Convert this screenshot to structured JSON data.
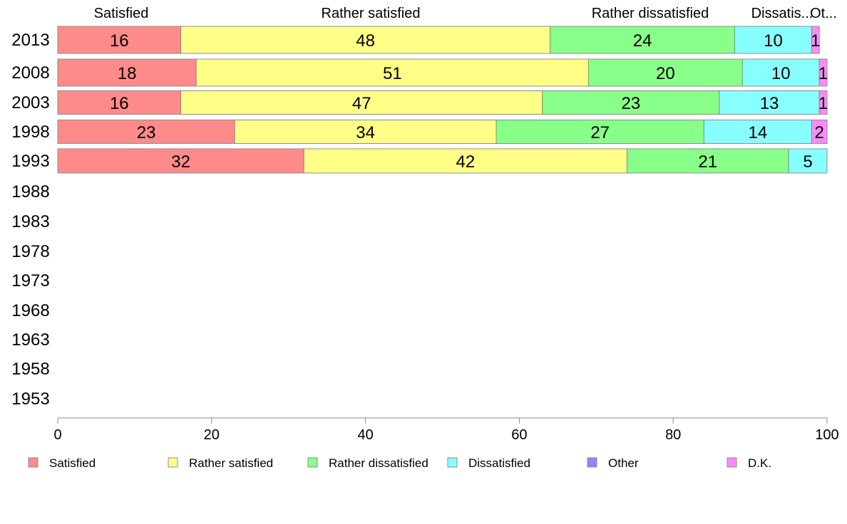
{
  "chart_data": {
    "type": "bar",
    "orientation": "horizontal",
    "stacked": true,
    "title": "",
    "xlabel": "",
    "ylabel": "",
    "xlim": [
      0,
      100
    ],
    "x_ticks": [
      "0",
      "20",
      "40",
      "60",
      "80",
      "100"
    ],
    "categories": [
      "2013",
      "2008",
      "2003",
      "1998",
      "1993",
      "1988",
      "1983",
      "1978",
      "1973",
      "1968",
      "1963",
      "1958",
      "1953"
    ],
    "top_labels": [
      "Satisfied",
      "Rather satisfied",
      "Rather dissatisfied",
      "Dissatis...",
      "Ot..."
    ],
    "series": [
      {
        "name": "Satisfied",
        "color": "#ff8a8a",
        "values": [
          16,
          18,
          16,
          23,
          32,
          null,
          null,
          null,
          null,
          null,
          null,
          null,
          null
        ]
      },
      {
        "name": "Rather satisfied",
        "color": "#ffff88",
        "values": [
          48,
          51,
          47,
          34,
          42,
          null,
          null,
          null,
          null,
          null,
          null,
          null,
          null
        ]
      },
      {
        "name": "Rather dissatisfied",
        "color": "#88ff88",
        "values": [
          24,
          20,
          23,
          27,
          21,
          null,
          null,
          null,
          null,
          null,
          null,
          null,
          null
        ]
      },
      {
        "name": "Dissatisfied",
        "color": "#88ffff",
        "values": [
          10,
          10,
          13,
          14,
          5,
          null,
          null,
          null,
          null,
          null,
          null,
          null,
          null
        ]
      },
      {
        "name": "Other",
        "color": "#8888ff",
        "values": [
          0,
          0,
          0,
          0,
          0,
          null,
          null,
          null,
          null,
          null,
          null,
          null,
          null
        ]
      },
      {
        "name": "D.K.",
        "color": "#ff88ff",
        "values": [
          1,
          1,
          1,
          2,
          0,
          null,
          null,
          null,
          null,
          null,
          null,
          null,
          null
        ]
      }
    ],
    "legend_position": "bottom"
  }
}
